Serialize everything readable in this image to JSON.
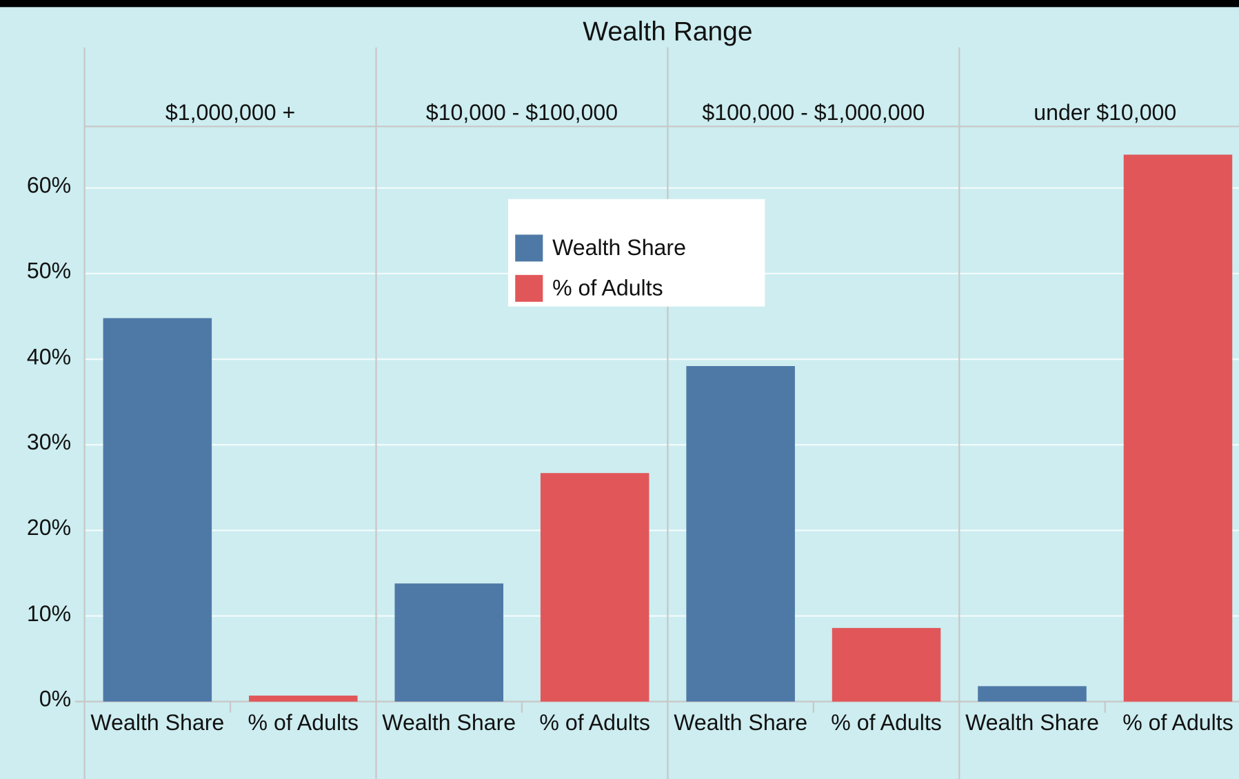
{
  "chart_data": {
    "type": "bar",
    "title": "Wealth Range",
    "categories": [
      "$1,000,000 +",
      "$10,000 - $100,000",
      "$100,000 - $1,000,000",
      "under $10,000"
    ],
    "series": [
      {
        "name": "Wealth Share",
        "color": "#4e79a7",
        "values": [
          44.8,
          13.8,
          39.2,
          1.8
        ]
      },
      {
        "name": "% of Adults",
        "color": "#e15759",
        "values": [
          0.7,
          26.7,
          8.6,
          63.9
        ]
      }
    ],
    "ylim": [
      0,
      67.2
    ],
    "yticks": [
      {
        "value": 0,
        "label": "0%"
      },
      {
        "value": 10,
        "label": "10%"
      },
      {
        "value": 20,
        "label": "20%"
      },
      {
        "value": 30,
        "label": "30%"
      },
      {
        "value": 40,
        "label": "40%"
      },
      {
        "value": 50,
        "label": "50%"
      },
      {
        "value": 60,
        "label": "60%"
      }
    ],
    "grid": true
  }
}
